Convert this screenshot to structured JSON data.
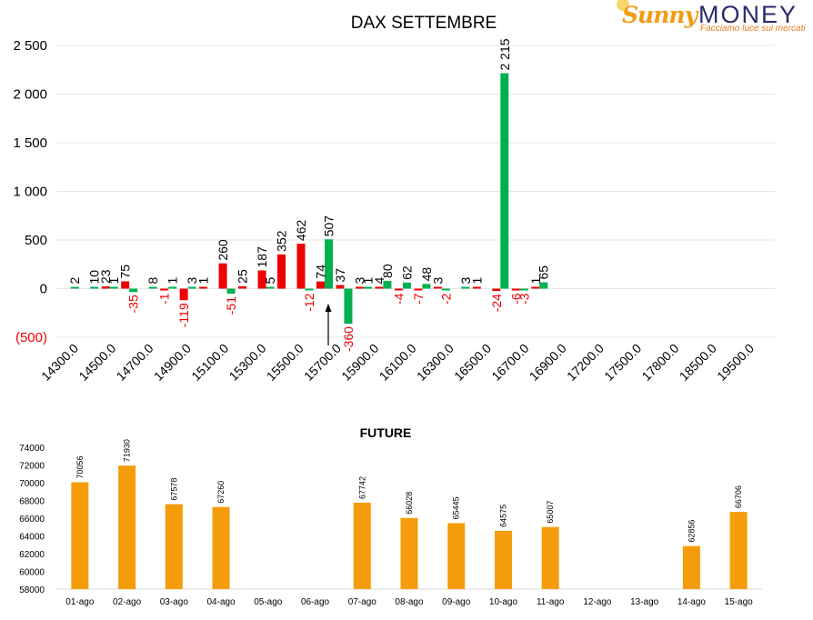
{
  "logo": {
    "sunny": "Sunny",
    "money": "MONEY",
    "tagline": "Facciamo luce sui mercati"
  },
  "colors": {
    "positive": "#00b050",
    "negative": "#ee0000",
    "future_bar": "#f59c0a",
    "grid": "#e6e6e6",
    "text": "#000000"
  },
  "chart_data": [
    {
      "type": "bar",
      "title": "DAX SETTEMBRE",
      "ylim": [
        -500,
        2500
      ],
      "yticks": [
        -500,
        0,
        500,
        1000,
        1500,
        2000,
        2500
      ],
      "ytick_labels": [
        "(500)",
        "0",
        "500",
        "1 000",
        "1 500",
        "2 000",
        "2 500"
      ],
      "negative_tick_color": "#ee0000",
      "grid": true,
      "xtick_labels": [
        "14300.0",
        "14500.0",
        "14700.0",
        "14900.0",
        "15100.0",
        "15300.0",
        "15500.0",
        "15700.0",
        "15900.0",
        "16100.0",
        "16300.0",
        "16500.0",
        "16700.0",
        "16900.0",
        "17200.0",
        "17500.0",
        "17800.0",
        "18500.0",
        "19500.0"
      ],
      "series": [
        {
          "color": "#00b050",
          "values": [
            2,
            10,
            1,
            -35,
            8,
            1,
            3,
            0,
            -51,
            0,
            5,
            0,
            -12,
            507,
            -360,
            1,
            80,
            62,
            48,
            -2,
            3,
            0,
            2215,
            -3,
            65
          ]
        },
        {
          "color": "#ee0000",
          "values": [
            0,
            0,
            23,
            75,
            0,
            -1,
            -119,
            1,
            260,
            25,
            187,
            352,
            462,
            74,
            37,
            3,
            4,
            -4,
            -7,
            3,
            0,
            1,
            -24,
            -6,
            1
          ]
        }
      ],
      "annotation": "arrow-up-under-15700"
    },
    {
      "type": "bar",
      "title": "FUTURE",
      "categories": [
        "01-ago",
        "02-ago",
        "03-ago",
        "04-ago",
        "05-ago",
        "06-ago",
        "07-ago",
        "08-ago",
        "09-ago",
        "10-ago",
        "11-ago",
        "12-ago",
        "13-ago",
        "14-ago",
        "15-ago"
      ],
      "values": [
        70056,
        71930,
        67578,
        67260,
        null,
        null,
        67742,
        66028,
        65445,
        64575,
        65007,
        null,
        null,
        62856,
        66706
      ],
      "ylim": [
        58000,
        74000
      ],
      "yticks": [
        58000,
        60000,
        62000,
        64000,
        66000,
        68000,
        70000,
        72000,
        74000
      ],
      "color": "#f59c0a",
      "grid": false
    }
  ]
}
